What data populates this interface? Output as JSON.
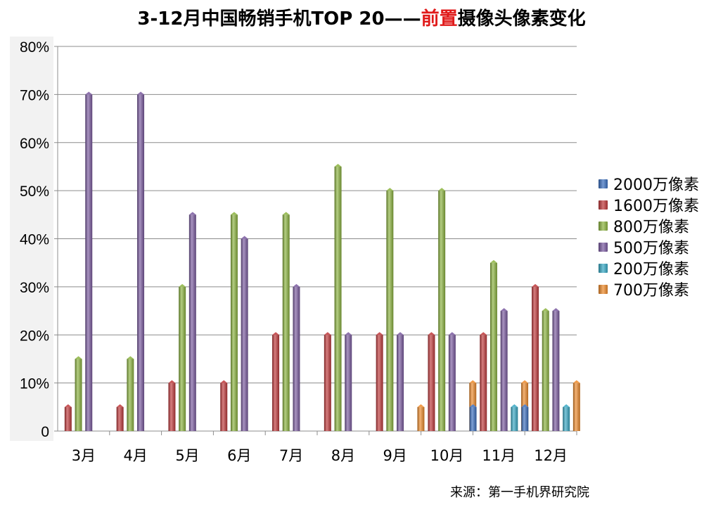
{
  "chart_data": {
    "type": "bar",
    "title_parts": {
      "prefix": "3-12月中国畅销手机TOP 20——",
      "highlight": "前置",
      "suffix": "摄像头像素变化"
    },
    "highlight_color": "#e01a1a",
    "categories": [
      "3月",
      "4月",
      "5月",
      "6月",
      "7月",
      "8月",
      "9月",
      "10月",
      "11月",
      "12月"
    ],
    "series": [
      {
        "name": "2000万像素",
        "color": "#3a6fbf",
        "values": [
          0,
          0,
          0,
          0,
          0,
          0,
          0,
          0,
          5,
          5
        ]
      },
      {
        "name": "1600万像素",
        "color": "#c0383a",
        "values": [
          5,
          5,
          10,
          10,
          20,
          20,
          20,
          20,
          20,
          30
        ]
      },
      {
        "name": "800万像素",
        "color": "#8cb43f",
        "values": [
          15,
          15,
          30,
          45,
          45,
          55,
          50,
          50,
          35,
          25
        ]
      },
      {
        "name": "500万像素",
        "color": "#7a5aa0",
        "values": [
          70,
          70,
          45,
          40,
          30,
          20,
          20,
          20,
          25,
          25
        ]
      },
      {
        "name": "200万像素",
        "color": "#37a8c4",
        "values": [
          0,
          0,
          0,
          0,
          0,
          0,
          0,
          0,
          5,
          5
        ]
      },
      {
        "name": "700万像素",
        "color": "#ee8a2a",
        "values": [
          0,
          0,
          0,
          0,
          0,
          0,
          5,
          10,
          10,
          10
        ]
      }
    ],
    "ylim": [
      0,
      80
    ],
    "yticks": [
      0,
      10,
      20,
      30,
      40,
      50,
      60,
      70,
      80
    ],
    "ytick_labels": [
      "0",
      "10%",
      "20%",
      "30%",
      "40%",
      "50%",
      "60%",
      "70%",
      "80%"
    ],
    "xlabel": "",
    "ylabel": "",
    "grid": true,
    "legend_position": "right"
  },
  "source": "来源：第一手机界研究院"
}
